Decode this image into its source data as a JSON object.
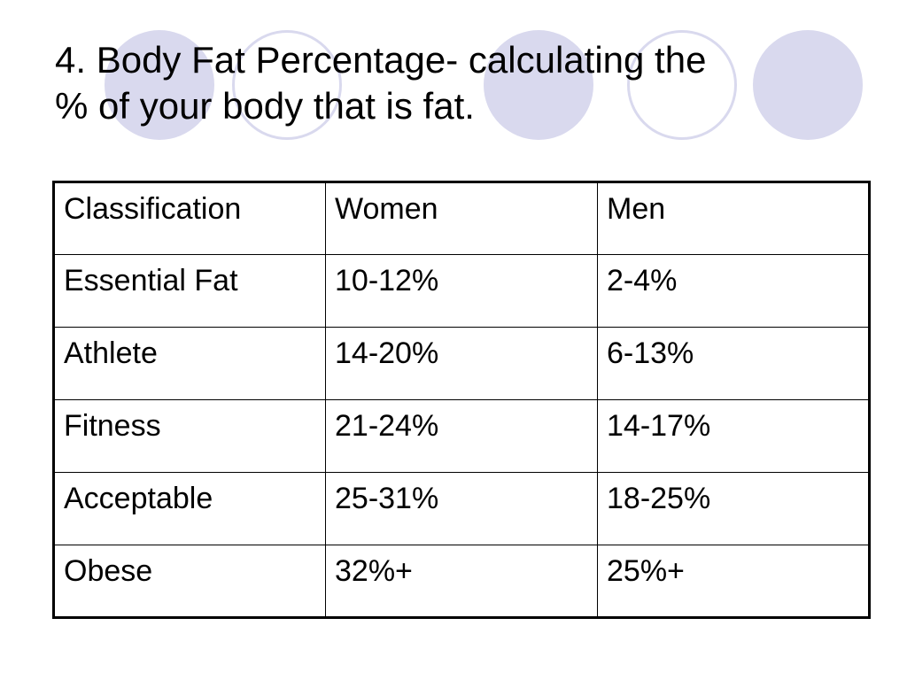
{
  "slide": {
    "title_lines": [
      "4. Body Fat Percentage- calculating the",
      "% of your body that is fat."
    ],
    "accent_color": "#d9d9ee"
  },
  "table": {
    "header": [
      "Classification",
      "Women",
      "Men"
    ],
    "rows": [
      [
        "Essential Fat",
        "10-12%",
        "2-4%"
      ],
      [
        "Athlete",
        "14-20%",
        "6-13%"
      ],
      [
        "Fitness",
        "21-24%",
        "14-17%"
      ],
      [
        "Acceptable",
        "25-31%",
        "18-25%"
      ],
      [
        "Obese",
        "32%+",
        "25%+"
      ]
    ]
  }
}
